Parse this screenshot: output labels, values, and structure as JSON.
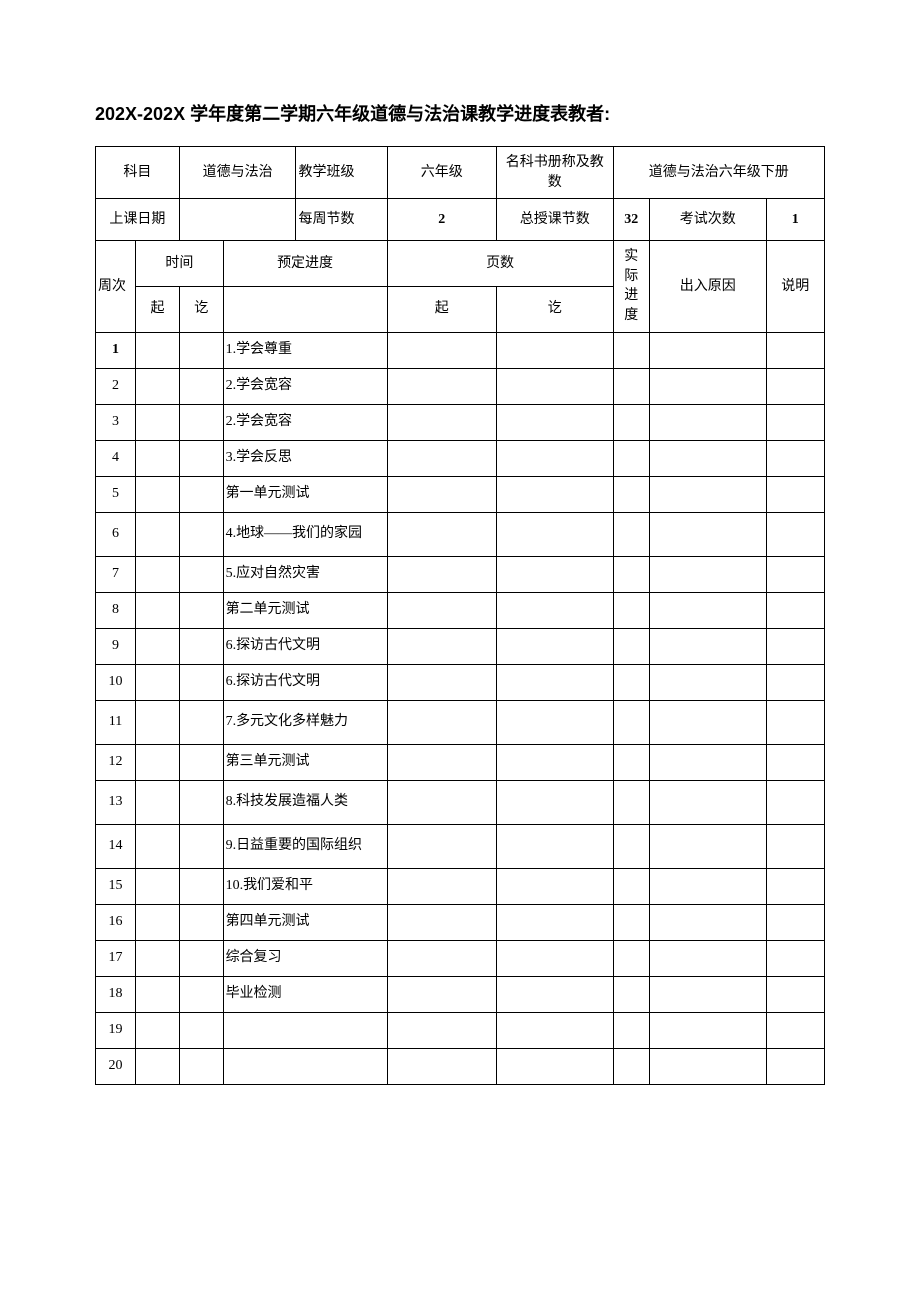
{
  "title": "202X-202X 学年度第二学期六年级道德与法治课教学进度表教者:",
  "header1": {
    "c1": "科目",
    "c2": "道德与法治",
    "c3": "教学班级",
    "c4": "六年级",
    "c5": "名科书册称及教数",
    "c6": "道德与法治六年级下册"
  },
  "header2": {
    "c1": "上课日期",
    "c2": "",
    "c3": "每周节数",
    "c4": "2",
    "c5": "总授课节数",
    "c6": "32",
    "c7": "考试次数",
    "c8": "1"
  },
  "colhead": {
    "week": "周次",
    "time": "时间",
    "plan": "预定进度",
    "page": "页数",
    "actual": "实际进度",
    "reason": "出入原因",
    "note": "说明",
    "from": "起",
    "to": "讫"
  },
  "rows": [
    {
      "n": "1",
      "plan": "1.学会尊重",
      "bold": true
    },
    {
      "n": "2",
      "plan": "2.学会宽容"
    },
    {
      "n": "3",
      "plan": "2.学会宽容"
    },
    {
      "n": "4",
      "plan": "3.学会反思"
    },
    {
      "n": "5",
      "plan": "第一单元测试"
    },
    {
      "n": "6",
      "plan": "4.地球——我们的家园",
      "multi": true
    },
    {
      "n": "7",
      "plan": "5.应对自然灾害"
    },
    {
      "n": "8",
      "plan": "第二单元测试"
    },
    {
      "n": "9",
      "plan": "6.探访古代文明"
    },
    {
      "n": "10",
      "plan": "6.探访古代文明"
    },
    {
      "n": "11",
      "plan": "7.多元文化多样魅力",
      "multi": true
    },
    {
      "n": "12",
      "plan": "第三单元测试"
    },
    {
      "n": "13",
      "plan": "8.科技发展造福人类",
      "multi": true
    },
    {
      "n": "14",
      "plan": "9.日益重要的国际组织",
      "multi": true
    },
    {
      "n": "15",
      "plan": "10.我们爱和平"
    },
    {
      "n": "16",
      "plan": "第四单元测试"
    },
    {
      "n": "17",
      "plan": "综合复习"
    },
    {
      "n": "18",
      "plan": "毕业检测"
    },
    {
      "n": "19",
      "plan": ""
    },
    {
      "n": "20",
      "plan": ""
    }
  ]
}
